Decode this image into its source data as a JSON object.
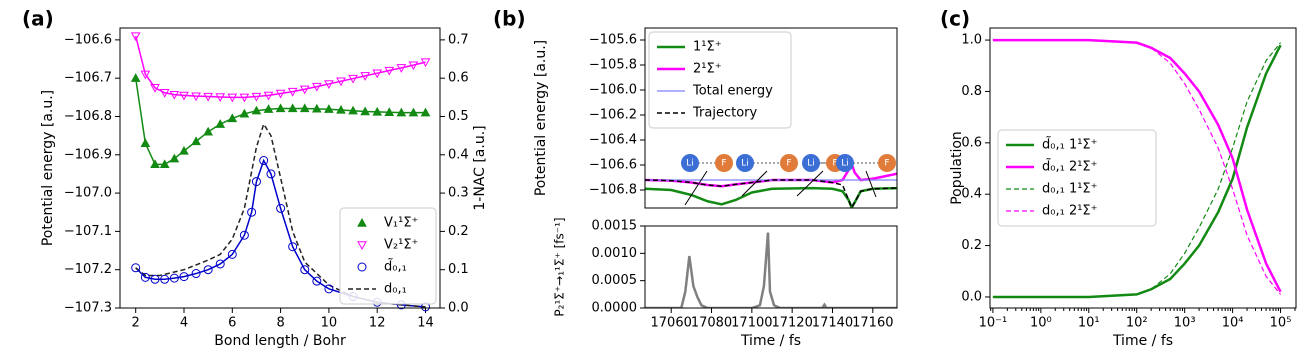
{
  "chart_data": [
    {
      "type": "line",
      "label": "(a)",
      "xlabel": "Bond length / Bohr",
      "ylabel": "Potential energy [a.u.]",
      "y2label": "1-NAC [a.u.]",
      "xlim": [
        1.35,
        14.6
      ],
      "xticks": [
        2,
        4,
        6,
        8,
        10,
        12,
        14
      ],
      "ylim": [
        -107.3,
        -106.569
      ],
      "yticks": [
        {
          "value": -107.3,
          "label": "−107.3"
        },
        {
          "value": -107.2,
          "label": "−107.2"
        },
        {
          "value": -107.1,
          "label": "−107.1"
        },
        {
          "value": -107.0,
          "label": "−107.0"
        },
        {
          "value": -106.9,
          "label": "−106.9"
        },
        {
          "value": -106.8,
          "label": "−106.8"
        },
        {
          "value": -106.7,
          "label": "−106.7"
        },
        {
          "value": -106.6,
          "label": "−106.6"
        }
      ],
      "y2lim": [
        0,
        0.731
      ],
      "y2ticks": [
        {
          "value": 0,
          "label": "0.0"
        },
        0.1,
        0.2,
        0.3,
        0.4,
        0.5,
        0.6,
        0.7
      ],
      "legend": "lower right",
      "series": [
        {
          "name": "V₁¹Σ⁺",
          "color": "#138a13",
          "marker": "triangle-up",
          "fill": true,
          "linestyle": "solid",
          "x": [
            2,
            2.4,
            2.8,
            3.2,
            3.6,
            4,
            4.5,
            5,
            5.5,
            6,
            6.5,
            7,
            7.5,
            8,
            8.5,
            9,
            9.5,
            10,
            10.5,
            11,
            11.5,
            12,
            12.5,
            13,
            13.5,
            14
          ],
          "values": [
            -106.7,
            -106.87,
            -106.925,
            -106.925,
            -106.91,
            -106.89,
            -106.865,
            -106.84,
            -106.82,
            -106.805,
            -106.793,
            -106.785,
            -106.781,
            -106.779,
            -106.779,
            -106.779,
            -106.78,
            -106.781,
            -106.783,
            -106.785,
            -106.787,
            -106.788,
            -106.789,
            -106.79,
            -106.79,
            -106.79
          ]
        },
        {
          "name": "V₂¹Σ⁺",
          "color": "#ff00ff",
          "marker": "triangle-down",
          "fill": false,
          "linestyle": "solid",
          "x": [
            2,
            2.4,
            2.8,
            3.2,
            3.6,
            4,
            4.5,
            5,
            5.5,
            6,
            6.5,
            7,
            7.5,
            8,
            8.5,
            9,
            9.5,
            10,
            10.5,
            11,
            11.5,
            12,
            12.5,
            13,
            13.5,
            14
          ],
          "values": [
            -106.59,
            -106.69,
            -106.725,
            -106.738,
            -106.743,
            -106.745,
            -106.747,
            -106.748,
            -106.749,
            -106.75,
            -106.75,
            -106.748,
            -106.745,
            -106.74,
            -106.735,
            -106.729,
            -106.722,
            -106.715,
            -106.708,
            -106.701,
            -106.694,
            -106.687,
            -106.68,
            -106.673,
            -106.666,
            -106.658
          ]
        },
        {
          "name": "d̃₀,₁",
          "color": "#0000cc",
          "marker": "circle",
          "fill": false,
          "linestyle": "solid",
          "axis": "y2",
          "x": [
            2,
            2.4,
            2.8,
            3.2,
            3.6,
            4,
            4.5,
            5,
            5.5,
            6,
            6.5,
            6.8,
            7,
            7.3,
            7.6,
            8,
            8.5,
            9,
            9.5,
            10,
            11,
            12,
            13,
            14
          ],
          "values": [
            0.105,
            0.08,
            0.075,
            0.075,
            0.078,
            0.082,
            0.09,
            0.1,
            0.115,
            0.14,
            0.19,
            0.25,
            0.33,
            0.385,
            0.35,
            0.26,
            0.16,
            0.1,
            0.07,
            0.05,
            0.03,
            0.015,
            0.008,
            0.003
          ]
        },
        {
          "name": "d₀,₁",
          "color": "#222222",
          "linestyle": "dashed",
          "axis": "y2",
          "x": [
            2,
            2.4,
            3,
            4,
            5,
            5.5,
            6,
            6.5,
            7,
            7.3,
            7.6,
            8,
            8.5,
            9,
            10,
            11,
            12,
            13,
            14
          ],
          "values": [
            0.105,
            0.085,
            0.085,
            0.1,
            0.125,
            0.14,
            0.18,
            0.26,
            0.42,
            0.48,
            0.45,
            0.34,
            0.2,
            0.12,
            0.06,
            0.03,
            0.015,
            0.008,
            0.003
          ]
        }
      ]
    },
    {
      "type": "line",
      "label": "(b)",
      "ylabel": "Potential energy [a.u.]",
      "xlim": [
        17047,
        17172
      ],
      "ylim": [
        -106.944,
        -105.504
      ],
      "yticks": [
        {
          "value": -106.8,
          "label": "−106.8"
        },
        {
          "value": -106.6,
          "label": "−106.6"
        },
        {
          "value": -106.4,
          "label": "−106.4"
        },
        {
          "value": -106.2,
          "label": "−106.2"
        },
        {
          "value": -106.0,
          "label": "−106.0"
        },
        {
          "value": -105.8,
          "label": "−105.8"
        },
        {
          "value": -105.6,
          "label": "−105.6"
        }
      ],
      "legend": "upper left",
      "annotations": [
        [
          "Li",
          "F"
        ],
        [
          "Li",
          "F"
        ],
        [
          "Li",
          "F"
        ],
        [
          "Li",
          "F"
        ]
      ],
      "series": [
        {
          "name": "1¹Σ⁺",
          "color": "#138a13",
          "linestyle": "solid",
          "width": 2.5,
          "x": [
            17047,
            17060,
            17070,
            17078,
            17085,
            17092,
            17100,
            17110,
            17130,
            17140,
            17145,
            17148,
            17149.5,
            17151,
            17154,
            17160,
            17172
          ],
          "values": [
            -106.79,
            -106.8,
            -106.84,
            -106.89,
            -106.915,
            -106.88,
            -106.82,
            -106.79,
            -106.785,
            -106.79,
            -106.81,
            -106.88,
            -106.94,
            -106.9,
            -106.81,
            -106.79,
            -106.785
          ]
        },
        {
          "name": "2¹Σ⁺",
          "color": "#ff00ff",
          "linestyle": "solid",
          "width": 2.5,
          "x": [
            17047,
            17060,
            17070,
            17078,
            17085,
            17092,
            17100,
            17110,
            17130,
            17140,
            17145,
            17148,
            17149.5,
            17151,
            17154,
            17160,
            17172
          ],
          "values": [
            -106.72,
            -106.725,
            -106.74,
            -106.76,
            -106.77,
            -106.755,
            -106.74,
            -106.72,
            -106.72,
            -106.74,
            -106.72,
            -106.64,
            -106.59,
            -106.66,
            -106.72,
            -106.71,
            -106.67
          ]
        },
        {
          "name": "Total energy",
          "color": "#8080ff",
          "linestyle": "solid",
          "width": 1.2,
          "x": [
            17047,
            17172
          ],
          "values": [
            -106.72,
            -106.72
          ]
        },
        {
          "name": "Trajectory",
          "color": "#000000",
          "linestyle": "dashed",
          "width": 1.5,
          "x": [
            17047,
            17060,
            17070,
            17078,
            17085,
            17092,
            17100,
            17110,
            17130,
            17140,
            17145,
            17148,
            17149.5,
            17151,
            17154,
            17160,
            17172
          ],
          "values": [
            -106.72,
            -106.725,
            -106.74,
            -106.76,
            -106.77,
            -106.755,
            -106.74,
            -106.72,
            -106.72,
            -106.74,
            -106.76,
            -106.88,
            -106.94,
            -106.9,
            -106.81,
            -106.79,
            -106.785
          ]
        }
      ]
    },
    {
      "type": "line",
      "xlabel": "Time / fs",
      "ylabel": "P₂¹Σ⁺→₁¹Σ⁺ [fs⁻¹]",
      "xlim": [
        17047,
        17172
      ],
      "xticks": [
        17060,
        17080,
        17100,
        17120,
        17140,
        17160
      ],
      "ylim": [
        0,
        0.0015
      ],
      "yticks": [
        {
          "value": 0,
          "label": "0.0000"
        },
        0.0005,
        {
          "value": 0.001,
          "label": "0.0010"
        },
        {
          "value": 0.0015,
          "label": "0.0015"
        }
      ],
      "series": [
        {
          "color": "#808080",
          "linestyle": "solid",
          "width": 2.5,
          "x": [
            17047,
            17065,
            17067,
            17069,
            17071,
            17073,
            17075,
            17078,
            17100,
            17104,
            17106,
            17108,
            17109,
            17111,
            17114,
            17135,
            17136,
            17137,
            17172
          ],
          "values": [
            0,
            0,
            0.0003,
            0.00095,
            0.0004,
            0.0002,
            5e-05,
            0,
            0,
            5e-05,
            0.0004,
            0.00138,
            0.0003,
            5e-05,
            0,
            0,
            6e-05,
            0,
            0
          ]
        }
      ]
    },
    {
      "type": "line",
      "label": "(c)",
      "xlabel": "Time / fs",
      "ylabel": "Population",
      "xscale": "log",
      "xlim": [
        0.087,
        210000
      ],
      "xticks": [
        {
          "value": 0.1,
          "label": "10⁻¹"
        },
        {
          "value": 1,
          "label": "10⁰"
        },
        {
          "value": 10,
          "label": "10¹"
        },
        {
          "value": 100,
          "label": "10²"
        },
        {
          "value": 1000,
          "label": "10³"
        },
        {
          "value": 10000,
          "label": "10⁴"
        },
        {
          "value": 100000,
          "label": "10⁵"
        }
      ],
      "ylim": [
        -0.043,
        1.047
      ],
      "yticks": [
        {
          "value": 0,
          "label": "0.0"
        },
        0.2,
        0.4,
        0.6,
        0.8,
        {
          "value": 1,
          "label": "1.0"
        }
      ],
      "legend": "center left",
      "x": [
        0.1,
        1,
        10,
        100,
        200,
        500,
        1000,
        2000,
        5000,
        10000,
        20000,
        50000,
        100000
      ],
      "series": [
        {
          "name": "d̃₀,₁ 1¹Σ⁺",
          "color": "#138a13",
          "linestyle": "solid",
          "width": 2.5,
          "values": [
            0,
            0,
            0,
            0.01,
            0.03,
            0.07,
            0.13,
            0.2,
            0.33,
            0.46,
            0.66,
            0.87,
            0.98
          ]
        },
        {
          "name": "d̃₀,₁ 2¹Σ⁺",
          "color": "#ff00ff",
          "linestyle": "solid",
          "width": 2.5,
          "values": [
            1,
            1,
            1,
            0.99,
            0.97,
            0.93,
            0.87,
            0.8,
            0.67,
            0.54,
            0.34,
            0.13,
            0.02
          ]
        },
        {
          "name": "d₀,₁ 1¹Σ⁺",
          "color": "#138a13",
          "linestyle": "dashed",
          "width": 1.2,
          "values": [
            0,
            0,
            0,
            0.01,
            0.03,
            0.09,
            0.17,
            0.27,
            0.42,
            0.58,
            0.76,
            0.92,
            0.99
          ]
        },
        {
          "name": "d₀,₁ 2¹Σ⁺",
          "color": "#ff00ff",
          "linestyle": "dashed",
          "width": 1.2,
          "values": [
            1,
            1,
            1,
            0.99,
            0.97,
            0.91,
            0.83,
            0.73,
            0.58,
            0.42,
            0.24,
            0.08,
            0.01
          ]
        }
      ]
    }
  ]
}
